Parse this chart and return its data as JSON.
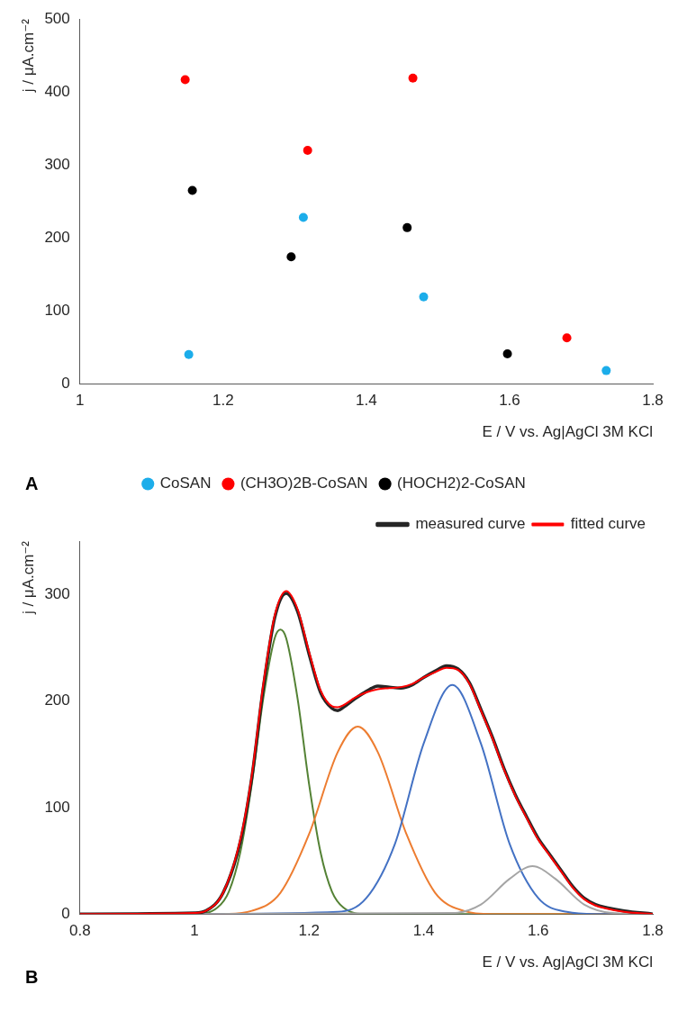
{
  "chart_data": [
    {
      "type": "scatter",
      "xlabel": "E / V vs. Ag|AgCl 3M KCl",
      "ylabel": "j / μA.cm⁻²",
      "xlim": [
        1,
        1.8
      ],
      "xticks": [
        1,
        1.2,
        1.4,
        1.6,
        1.8
      ],
      "ylim": [
        0,
        500
      ],
      "yticks": [
        0,
        100,
        200,
        300,
        400,
        500
      ],
      "grid": false,
      "legend": "bottom",
      "marker": "circle",
      "annotations": [
        "A"
      ],
      "series": [
        {
          "name": "CoSAN",
          "color": "#1cadea",
          "x": [
            1.152,
            1.312,
            1.48,
            1.735
          ],
          "values": [
            40,
            228,
            119,
            18
          ]
        },
        {
          "name": "(CH3O)2B-CoSAN",
          "color": "#ff0000",
          "x": [
            1.147,
            1.318,
            1.465,
            1.68
          ],
          "values": [
            417,
            320,
            419,
            63
          ]
        },
        {
          "name": "(HOCH2)2-CoSAN",
          "color": "#000000",
          "x": [
            1.157,
            1.295,
            1.457,
            1.597
          ],
          "values": [
            265,
            174,
            214,
            41
          ]
        }
      ]
    },
    {
      "type": "line",
      "xlabel": "E / V vs. Ag|AgCl 3M KCl",
      "ylabel": "j / μA.cm⁻²",
      "xlim": [
        0.8,
        1.8
      ],
      "xticks": [
        0.8,
        1,
        1.2,
        1.4,
        1.6,
        1.8
      ],
      "ylim": [
        0,
        350
      ],
      "yticks": [
        0,
        100,
        200,
        300
      ],
      "grid": false,
      "legend": "top right",
      "marker": "none",
      "line_style": "solid",
      "annotations": [
        "B"
      ],
      "series": [
        {
          "name": "measured curve",
          "color": "#262626",
          "x": [
            0.8,
            1.0,
            1.02,
            1.05,
            1.08,
            1.1,
            1.12,
            1.14,
            1.16,
            1.18,
            1.2,
            1.22,
            1.24,
            1.25,
            1.26,
            1.28,
            1.3,
            1.32,
            1.34,
            1.36,
            1.38,
            1.4,
            1.42,
            1.44,
            1.46,
            1.48,
            1.5,
            1.52,
            1.54,
            1.56,
            1.58,
            1.6,
            1.62,
            1.64,
            1.66,
            1.68,
            1.7,
            1.72,
            1.75,
            1.8
          ],
          "values": [
            0,
            1,
            3,
            20,
            68,
            128,
            212,
            278,
            301,
            284,
            244,
            208,
            193,
            191,
            194,
            202,
            209,
            214,
            213,
            212,
            215,
            222,
            228,
            233,
            230,
            217,
            192,
            166,
            137,
            112,
            91,
            71,
            56,
            41,
            26,
            15,
            9,
            6,
            3,
            0
          ]
        },
        {
          "name": "fitted curve",
          "color": "#ff0000",
          "x": [
            0.8,
            1.0,
            1.02,
            1.05,
            1.08,
            1.1,
            1.12,
            1.14,
            1.16,
            1.18,
            1.2,
            1.22,
            1.24,
            1.25,
            1.26,
            1.28,
            1.3,
            1.32,
            1.34,
            1.36,
            1.38,
            1.4,
            1.42,
            1.44,
            1.46,
            1.48,
            1.5,
            1.52,
            1.54,
            1.56,
            1.58,
            1.6,
            1.62,
            1.64,
            1.66,
            1.68,
            1.7,
            1.72,
            1.75,
            1.8
          ],
          "values": [
            0,
            1,
            3,
            20,
            70,
            130,
            215,
            280,
            303,
            286,
            246,
            210,
            195,
            194,
            196,
            203,
            208,
            211,
            212,
            213,
            216,
            222,
            227,
            231,
            229,
            216,
            191,
            165,
            136,
            111,
            90,
            70,
            55,
            40,
            25,
            14,
            8,
            5,
            2,
            0
          ]
        },
        {
          "color": "#548235",
          "x": [
            0.8,
            1.0,
            1.04,
            1.06,
            1.08,
            1.1,
            1.12,
            1.14,
            1.15,
            1.16,
            1.18,
            1.2,
            1.22,
            1.24,
            1.26,
            1.3,
            1.8
          ],
          "values": [
            0,
            0,
            6,
            21,
            58,
            122,
            202,
            259,
            267,
            259,
            202,
            122,
            58,
            21,
            6,
            0,
            0
          ]
        },
        {
          "color": "#ed7d31",
          "x": [
            0.8,
            1.0,
            1.05,
            1.1,
            1.15,
            1.2,
            1.25,
            1.285,
            1.32,
            1.37,
            1.42,
            1.47,
            1.52,
            1.8
          ],
          "values": [
            0,
            0,
            0,
            3,
            20,
            75,
            152,
            176,
            152,
            75,
            20,
            3,
            0,
            0
          ]
        },
        {
          "color": "#4472c4",
          "x": [
            0.8,
            1.0,
            1.25,
            1.3,
            1.35,
            1.4,
            1.45,
            1.5,
            1.55,
            1.6,
            1.65,
            1.7,
            1.8
          ],
          "values": [
            0,
            0,
            2,
            15,
            66,
            160,
            215,
            160,
            66,
            15,
            2,
            0,
            0
          ]
        },
        {
          "color": "#a5a5a5",
          "x": [
            0.8,
            1.0,
            1.45,
            1.5,
            1.55,
            1.59,
            1.63,
            1.68,
            1.73,
            1.8
          ],
          "values": [
            0,
            0,
            1,
            9,
            33,
            45,
            33,
            9,
            1,
            0
          ]
        }
      ]
    }
  ]
}
